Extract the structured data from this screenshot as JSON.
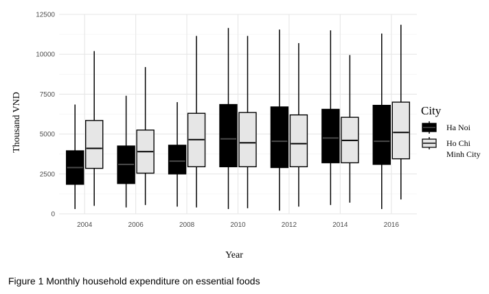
{
  "chart_data": {
    "type": "boxplot",
    "xlabel": "Year",
    "ylabel": "Thousand VND",
    "ylim": [
      0,
      12500
    ],
    "y_ticks": [
      0,
      2500,
      5000,
      7500,
      10000,
      12500
    ],
    "categories": [
      "2004",
      "2006",
      "2008",
      "2010",
      "2012",
      "2014",
      "2016"
    ],
    "legend": {
      "title": "City",
      "position": "right"
    },
    "grid": true,
    "series": [
      {
        "name_lines": [
          "Ha Noi"
        ],
        "fill": "#000000",
        "median_color": "#4a4a4a",
        "boxes": [
          {
            "min": 300,
            "q1": 1850,
            "median": 2900,
            "q3": 3950,
            "max": 6850
          },
          {
            "min": 400,
            "q1": 1900,
            "median": 3100,
            "q3": 4250,
            "max": 7400
          },
          {
            "min": 450,
            "q1": 2500,
            "median": 3300,
            "q3": 4300,
            "max": 7000
          },
          {
            "min": 300,
            "q1": 2950,
            "median": 4700,
            "q3": 6850,
            "max": 11650
          },
          {
            "min": 200,
            "q1": 2900,
            "median": 4550,
            "q3": 6700,
            "max": 11550
          },
          {
            "min": 550,
            "q1": 3200,
            "median": 4750,
            "q3": 6550,
            "max": 11500
          },
          {
            "min": 300,
            "q1": 3100,
            "median": 4550,
            "q3": 6800,
            "max": 11300
          }
        ]
      },
      {
        "name_lines": [
          "Ho Chi",
          "Minh City"
        ],
        "fill": "#e6e6e6",
        "median_color": "#000000",
        "boxes": [
          {
            "min": 500,
            "q1": 2850,
            "median": 4100,
            "q3": 5850,
            "max": 10200
          },
          {
            "min": 550,
            "q1": 2550,
            "median": 3900,
            "q3": 5250,
            "max": 9200
          },
          {
            "min": 400,
            "q1": 2950,
            "median": 4650,
            "q3": 6300,
            "max": 11150
          },
          {
            "min": 350,
            "q1": 2950,
            "median": 4450,
            "q3": 6350,
            "max": 11150
          },
          {
            "min": 450,
            "q1": 2950,
            "median": 4400,
            "q3": 6200,
            "max": 10700
          },
          {
            "min": 700,
            "q1": 3200,
            "median": 4600,
            "q3": 6050,
            "max": 9950
          },
          {
            "min": 900,
            "q1": 3450,
            "median": 5100,
            "q3": 7000,
            "max": 11850
          }
        ]
      }
    ]
  },
  "caption": "Figure 1 Monthly household expenditure on essential foods"
}
